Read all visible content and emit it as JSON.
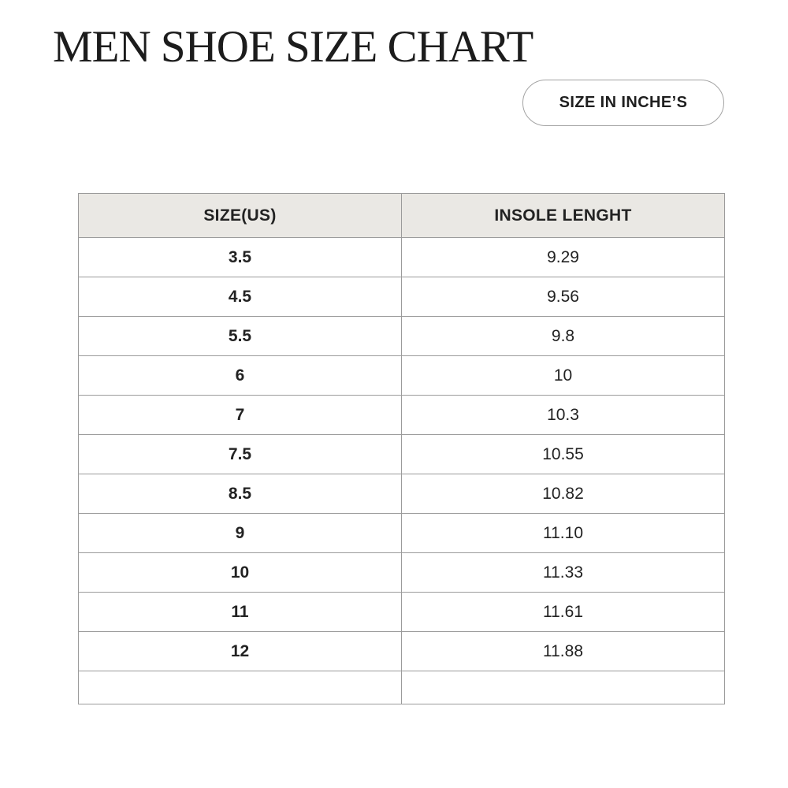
{
  "page": {
    "title": "MEN SHOE SIZE CHART",
    "unit_badge": "SIZE IN INCHE’S"
  },
  "table": {
    "headers": [
      "SIZE(US)",
      "INSOLE LENGHT"
    ],
    "rows": [
      [
        "3.5",
        "9.29"
      ],
      [
        "4.5",
        "9.56"
      ],
      [
        "5.5",
        "9.8"
      ],
      [
        "6",
        "10"
      ],
      [
        "7",
        "10.3"
      ],
      [
        "7.5",
        "10.55"
      ],
      [
        "8.5",
        "10.82"
      ],
      [
        "9",
        "11.10"
      ],
      [
        "10",
        "11.33"
      ],
      [
        "11",
        "11.61"
      ],
      [
        "12",
        "11.88"
      ],
      [
        "",
        ""
      ]
    ]
  },
  "colors": {
    "background": "#ffffff",
    "header_bg": "#eae8e4",
    "border": "#9b9b9b",
    "pill_border": "#a3a3a3",
    "text": "#222222"
  },
  "chart_data": {
    "type": "table",
    "title": "MEN SHOE SIZE CHART",
    "unit_label": "SIZE IN INCHE’S",
    "columns": [
      "SIZE(US)",
      "INSOLE LENGHT"
    ],
    "rows": [
      [
        "3.5",
        "9.29"
      ],
      [
        "4.5",
        "9.56"
      ],
      [
        "5.5",
        "9.8"
      ],
      [
        "6",
        "10"
      ],
      [
        "7",
        "10.3"
      ],
      [
        "7.5",
        "10.55"
      ],
      [
        "8.5",
        "10.82"
      ],
      [
        "9",
        "11.10"
      ],
      [
        "10",
        "11.33"
      ],
      [
        "11",
        "11.61"
      ],
      [
        "12",
        "11.88"
      ]
    ],
    "sizes_us": [
      3.5,
      4.5,
      5.5,
      6,
      7,
      7.5,
      8.5,
      9,
      10,
      11,
      12
    ],
    "insole_length_inches": [
      9.29,
      9.56,
      9.8,
      10,
      10.3,
      10.55,
      10.82,
      11.1,
      11.33,
      11.61,
      11.88
    ]
  }
}
